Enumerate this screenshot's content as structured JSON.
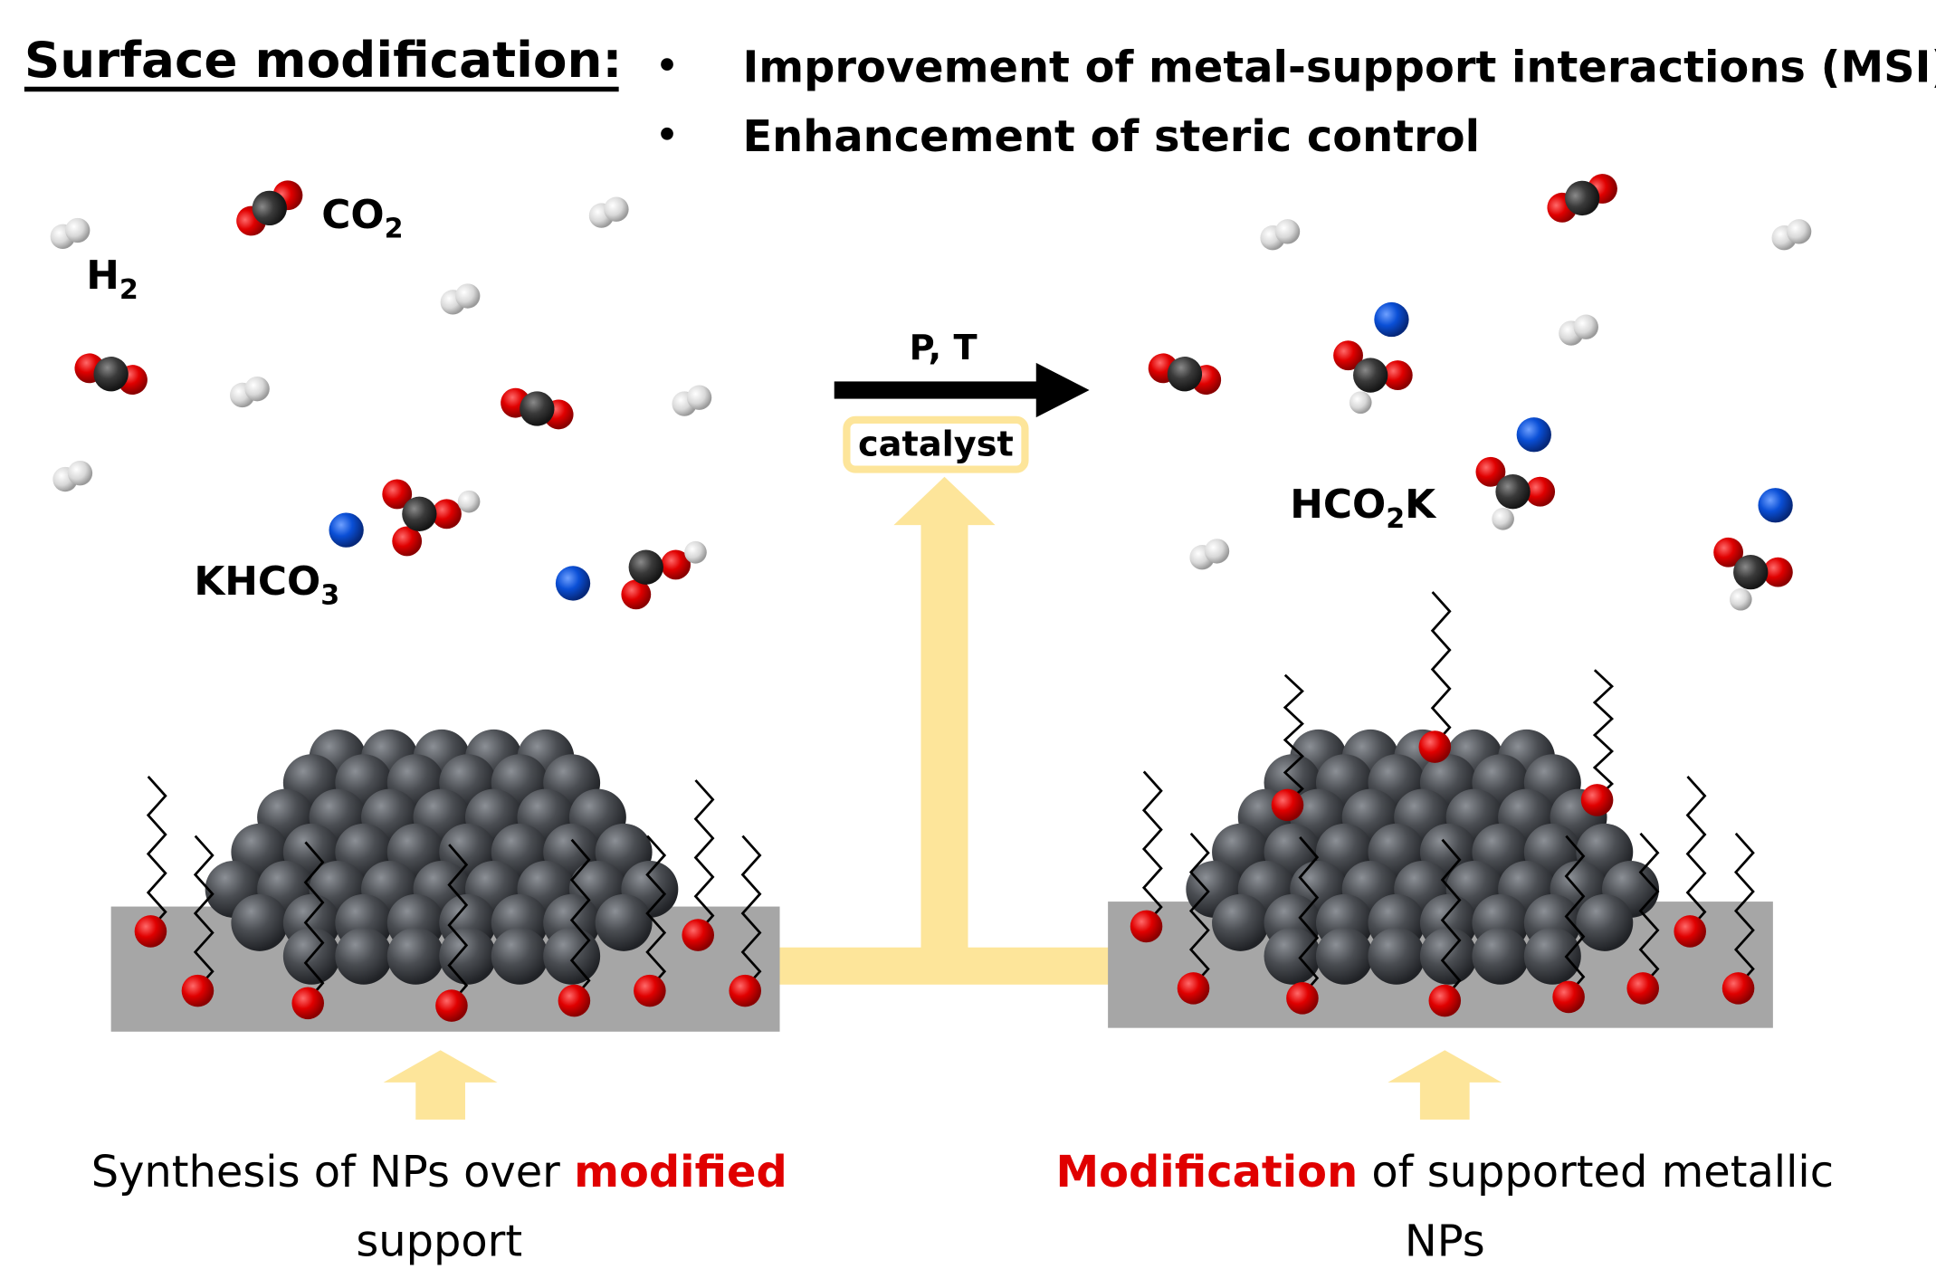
{
  "header": {
    "title": "Surface modification:",
    "bullets": [
      "Improvement of metal-support interactions (MSI)",
      "Enhancement of steric control"
    ]
  },
  "labels": {
    "co2": "CO",
    "co2_sub": "2",
    "h2": "H",
    "h2_sub": "2",
    "khco3": "KHCO",
    "khco3_sub": "3",
    "hco2k_a": "HCO",
    "hco2k_sub": "2",
    "hco2k_b": "K"
  },
  "reaction": {
    "conditions": "P, T",
    "catalyst": "catalyst"
  },
  "captions": {
    "left_line1_a": "Synthesis of NPs over ",
    "left_line1_b": "modified",
    "left_line2": "support",
    "right_line1_a": "Modification",
    "right_line1_b": " of supported metallic",
    "right_line2": "NPs"
  },
  "colors": {
    "oxygen": "#e00000",
    "carbon": "#3a3a3a",
    "hydrogen": "#d8d8d8",
    "potassium": "#0a4fd6",
    "support": "#a6a6a6",
    "arrow_yellow": "#fde59a",
    "highlight_text": "#e00000",
    "metal": "#4a4d52"
  }
}
